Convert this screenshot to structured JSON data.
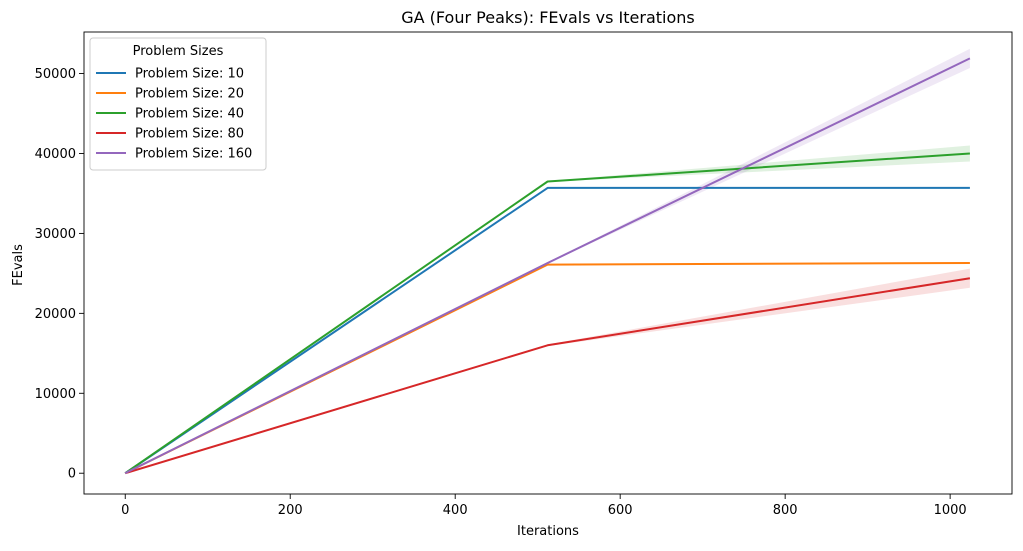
{
  "chart_data": {
    "type": "line",
    "title": "GA (Four Peaks): FEvals vs Iterations",
    "xlabel": "Iterations",
    "ylabel": "FEvals",
    "xlim": [
      -50,
      1075
    ],
    "ylim": [
      -2600,
      55200
    ],
    "xticks": [
      0,
      200,
      400,
      600,
      800,
      1000
    ],
    "yticks": [
      0,
      10000,
      20000,
      30000,
      40000,
      50000
    ],
    "grid": false,
    "legend": {
      "title": "Problem Sizes",
      "placement": "top-left"
    },
    "series": [
      {
        "name": "Problem Size: 10",
        "color": "#1f77b4",
        "x": [
          0,
          512,
          1024
        ],
        "y": [
          0,
          35700,
          35700
        ],
        "band_low": [
          0,
          35700,
          35700
        ],
        "band_high": [
          0,
          35700,
          35700
        ]
      },
      {
        "name": "Problem Size: 20",
        "color": "#ff7f0e",
        "x": [
          0,
          512,
          1024
        ],
        "y": [
          0,
          26100,
          26300
        ],
        "band_low": [
          0,
          26100,
          26200
        ],
        "band_high": [
          0,
          26100,
          26400
        ]
      },
      {
        "name": "Problem Size: 40",
        "color": "#2ca02c",
        "x": [
          0,
          512,
          1024
        ],
        "y": [
          0,
          36500,
          40000
        ],
        "band_low": [
          0,
          36450,
          39000
        ],
        "band_high": [
          0,
          36550,
          41000
        ]
      },
      {
        "name": "Problem Size: 80",
        "color": "#d62728",
        "x": [
          0,
          512,
          1024
        ],
        "y": [
          0,
          16000,
          24400
        ],
        "band_low": [
          0,
          15900,
          23200
        ],
        "band_high": [
          0,
          16100,
          25600
        ]
      },
      {
        "name": "Problem Size: 160",
        "color": "#9467bd",
        "x": [
          0,
          512,
          1024
        ],
        "y": [
          0,
          26300,
          51900
        ],
        "band_low": [
          0,
          26250,
          50700
        ],
        "band_high": [
          0,
          26350,
          53100
        ]
      }
    ]
  }
}
